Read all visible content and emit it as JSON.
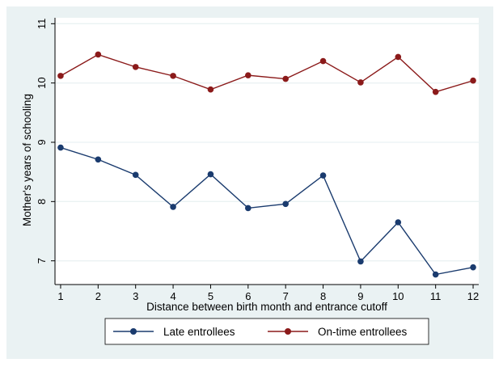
{
  "chart_data": {
    "type": "line",
    "title": "",
    "xlabel": "Distance between birth month and entrance cutoff",
    "ylabel": "Mother's years of schooling",
    "x": [
      1,
      2,
      3,
      4,
      5,
      6,
      7,
      8,
      9,
      10,
      11,
      12
    ],
    "x_ticks": [
      "1",
      "2",
      "3",
      "4",
      "5",
      "6",
      "7",
      "8",
      "9",
      "10",
      "11",
      "12"
    ],
    "y_ticks": [
      "7",
      "8",
      "9",
      "10",
      "11"
    ],
    "ylim": [
      6.6,
      11.1
    ],
    "xlim": [
      0.85,
      12.15
    ],
    "grid": true,
    "legend_position": "bottom",
    "series": [
      {
        "name": "Late entrollees",
        "color": "#1a3b6e",
        "values": [
          8.91,
          8.71,
          8.45,
          7.91,
          8.46,
          7.89,
          7.96,
          8.44,
          6.99,
          7.65,
          6.77,
          6.89
        ]
      },
      {
        "name": "On-time entrollees",
        "color": "#8b1a1a",
        "values": [
          10.12,
          10.48,
          10.27,
          10.12,
          9.89,
          10.13,
          10.07,
          10.37,
          10.01,
          10.44,
          9.85,
          10.04
        ]
      }
    ]
  }
}
